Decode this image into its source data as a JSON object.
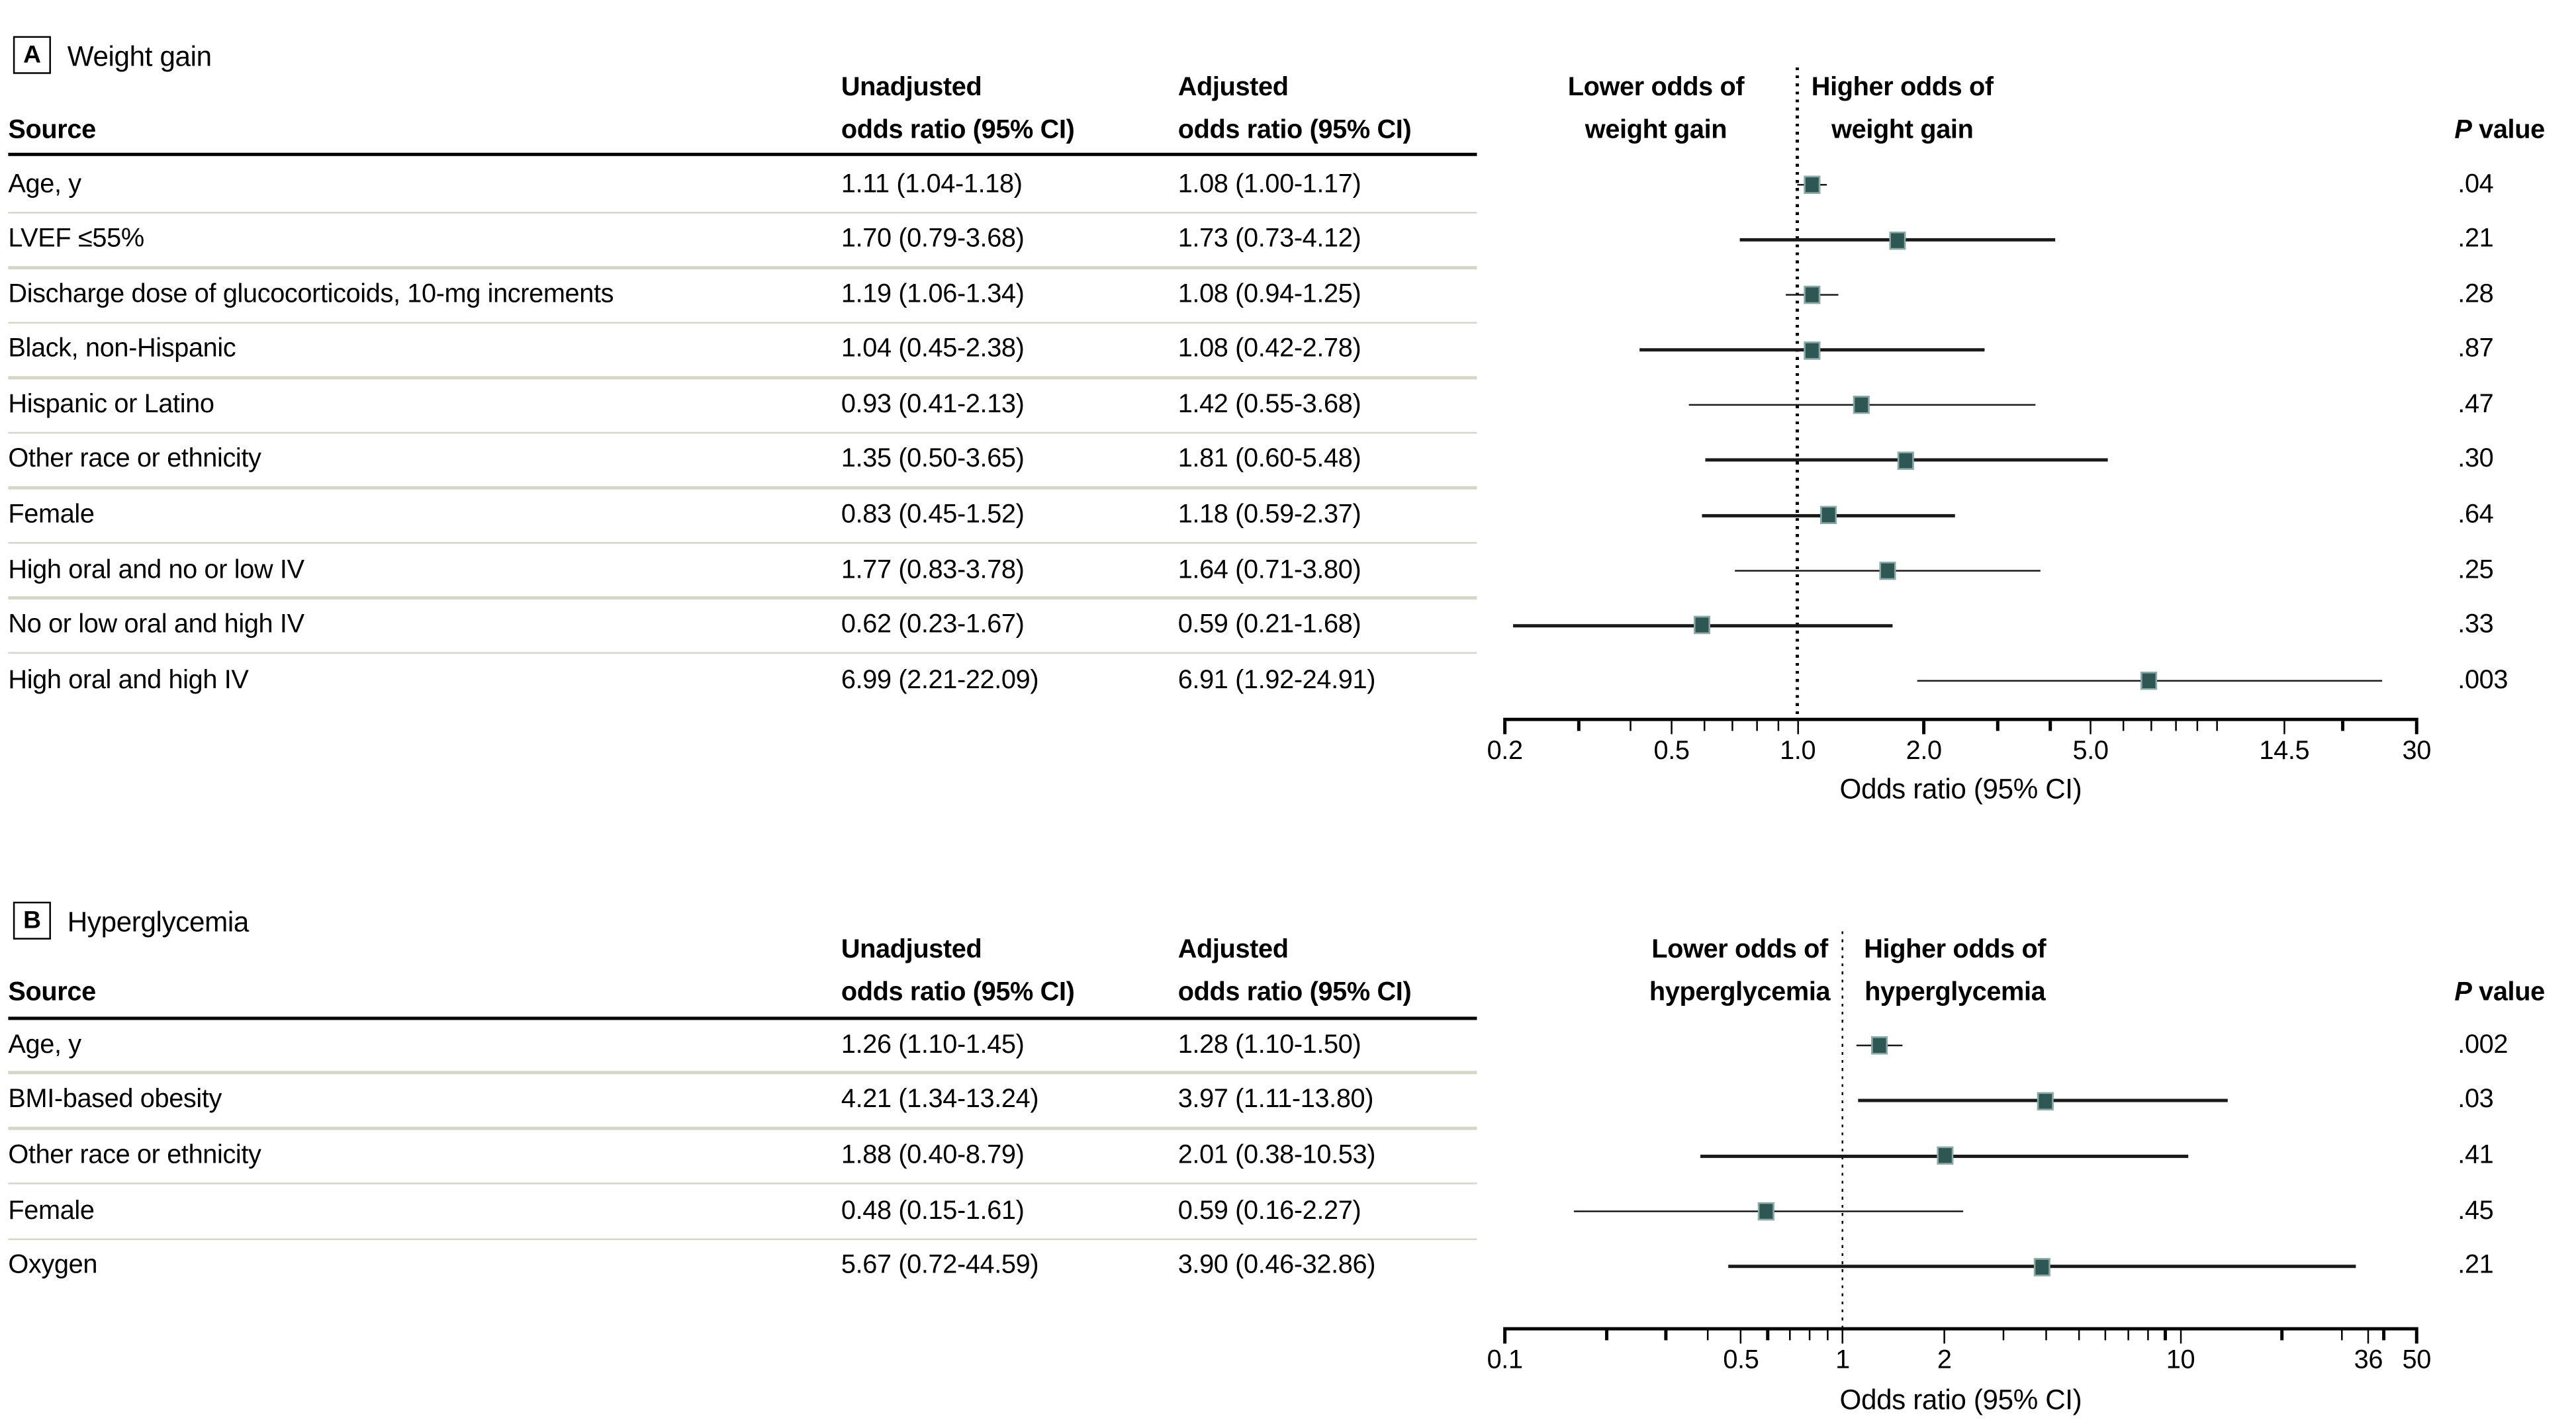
{
  "accent_color": "#2e5753",
  "separator_color": "#d6d6c8",
  "chart_data": [
    {
      "type": "forest",
      "panel_letter": "A",
      "title": "Weight gain",
      "columns": {
        "source": "Source",
        "unadjusted": "Unadjusted\nodds ratio (95% CI)",
        "adjusted": "Adjusted\nodds ratio (95% CI)",
        "p_italic": "P",
        "p_rest": " value"
      },
      "direction_left": "Lower odds of\nweight gain",
      "direction_right": "Higher odds of\nweight gain",
      "axis": {
        "scale": "log",
        "min": 0.2,
        "max": 30,
        "ref_line": 1.0,
        "title": "Odds ratio (95% CI)",
        "major_ticks": [
          {
            "v": 0.2,
            "label": "0.2"
          },
          {
            "v": 0.5,
            "label": "0.5"
          },
          {
            "v": 1.0,
            "label": "1.0"
          },
          {
            "v": 2.0,
            "label": "2.0"
          },
          {
            "v": 5.0,
            "label": "5.0"
          },
          {
            "v": 14.5,
            "label": "14.5"
          },
          {
            "v": 30,
            "label": "30"
          }
        ],
        "minor_ticks": [
          0.3,
          0.4,
          0.6,
          0.7,
          0.8,
          0.9,
          3,
          4,
          6,
          7,
          8,
          9,
          10,
          20
        ]
      },
      "rows": [
        {
          "source": "Age, y",
          "unadjusted": "1.11 (1.04-1.18)",
          "adjusted": "1.08 (1.00-1.17)",
          "or": 1.08,
          "lo": 1.0,
          "hi": 1.17,
          "p": ".04"
        },
        {
          "source": "LVEF ≤55%",
          "unadjusted": "1.70 (0.79-3.68)",
          "adjusted": "1.73 (0.73-4.12)",
          "or": 1.73,
          "lo": 0.73,
          "hi": 4.12,
          "p": ".21"
        },
        {
          "source": "Discharge dose of glucocorticoids, 10-mg increments",
          "unadjusted": "1.19 (1.06-1.34)",
          "adjusted": "1.08 (0.94-1.25)",
          "or": 1.08,
          "lo": 0.94,
          "hi": 1.25,
          "p": ".28"
        },
        {
          "source": "Black, non-Hispanic",
          "unadjusted": "1.04 (0.45-2.38)",
          "adjusted": "1.08 (0.42-2.78)",
          "or": 1.08,
          "lo": 0.42,
          "hi": 2.78,
          "p": ".87"
        },
        {
          "source": "Hispanic or Latino",
          "unadjusted": "0.93 (0.41-2.13)",
          "adjusted": "1.42 (0.55-3.68)",
          "or": 1.42,
          "lo": 0.55,
          "hi": 3.68,
          "p": ".47"
        },
        {
          "source": "Other race or ethnicity",
          "unadjusted": "1.35 (0.50-3.65)",
          "adjusted": "1.81 (0.60-5.48)",
          "or": 1.81,
          "lo": 0.6,
          "hi": 5.48,
          "p": ".30"
        },
        {
          "source": "Female",
          "unadjusted": "0.83 (0.45-1.52)",
          "adjusted": "1.18 (0.59-2.37)",
          "or": 1.18,
          "lo": 0.59,
          "hi": 2.37,
          "p": ".64"
        },
        {
          "source": "High oral and no or low IV",
          "unadjusted": "1.77 (0.83-3.78)",
          "adjusted": "1.64 (0.71-3.80)",
          "or": 1.64,
          "lo": 0.71,
          "hi": 3.8,
          "p": ".25"
        },
        {
          "source": "No or low oral and high IV",
          "unadjusted": "0.62 (0.23-1.67)",
          "adjusted": "0.59 (0.21-1.68)",
          "or": 0.59,
          "lo": 0.21,
          "hi": 1.68,
          "p": ".33"
        },
        {
          "source": "High oral and high IV",
          "unadjusted": "6.99 (2.21-22.09)",
          "adjusted": "6.91 (1.92-24.91)",
          "or": 6.91,
          "lo": 1.92,
          "hi": 24.91,
          "p": ".003"
        }
      ]
    },
    {
      "type": "forest",
      "panel_letter": "B",
      "title": "Hyperglycemia",
      "columns": {
        "source": "Source",
        "unadjusted": "Unadjusted\nodds ratio (95% CI)",
        "adjusted": "Adjusted\nodds ratio (95% CI)",
        "p_italic": "P",
        "p_rest": " value"
      },
      "direction_left": "Lower odds of\nhyperglycemia",
      "direction_right": "Higher odds of\nhyperglycemia",
      "axis": {
        "scale": "log",
        "min": 0.1,
        "max": 50,
        "ref_line": 1.0,
        "title": "Odds ratio (95% CI)",
        "major_ticks": [
          {
            "v": 0.1,
            "label": "0.1"
          },
          {
            "v": 0.5,
            "label": "0.5"
          },
          {
            "v": 1,
            "label": "1"
          },
          {
            "v": 2,
            "label": "2"
          },
          {
            "v": 10,
            "label": "10"
          },
          {
            "v": 36,
            "label": "36"
          },
          {
            "v": 50,
            "label": "50"
          }
        ],
        "minor_ticks": [
          0.2,
          0.3,
          0.4,
          0.6,
          0.7,
          0.8,
          0.9,
          3,
          4,
          5,
          6,
          7,
          8,
          9,
          20,
          30,
          40
        ]
      },
      "rows": [
        {
          "source": "Age, y",
          "unadjusted": "1.26 (1.10-1.45)",
          "adjusted": "1.28 (1.10-1.50)",
          "or": 1.28,
          "lo": 1.1,
          "hi": 1.5,
          "p": ".002"
        },
        {
          "source": "BMI-based obesity",
          "unadjusted": "4.21 (1.34-13.24)",
          "adjusted": "3.97 (1.11-13.80)",
          "or": 3.97,
          "lo": 1.11,
          "hi": 13.8,
          "p": ".03"
        },
        {
          "source": "Other race or ethnicity",
          "unadjusted": "1.88 (0.40-8.79)",
          "adjusted": "2.01 (0.38-10.53)",
          "or": 2.01,
          "lo": 0.38,
          "hi": 10.53,
          "p": ".41"
        },
        {
          "source": "Female",
          "unadjusted": "0.48 (0.15-1.61)",
          "adjusted": "0.59 (0.16-2.27)",
          "or": 0.59,
          "lo": 0.16,
          "hi": 2.27,
          "p": ".45"
        },
        {
          "source": "Oxygen",
          "unadjusted": "5.67 (0.72-44.59)",
          "adjusted": "3.90 (0.46-32.86)",
          "or": 3.9,
          "lo": 0.46,
          "hi": 32.86,
          "p": ".21"
        }
      ]
    }
  ]
}
